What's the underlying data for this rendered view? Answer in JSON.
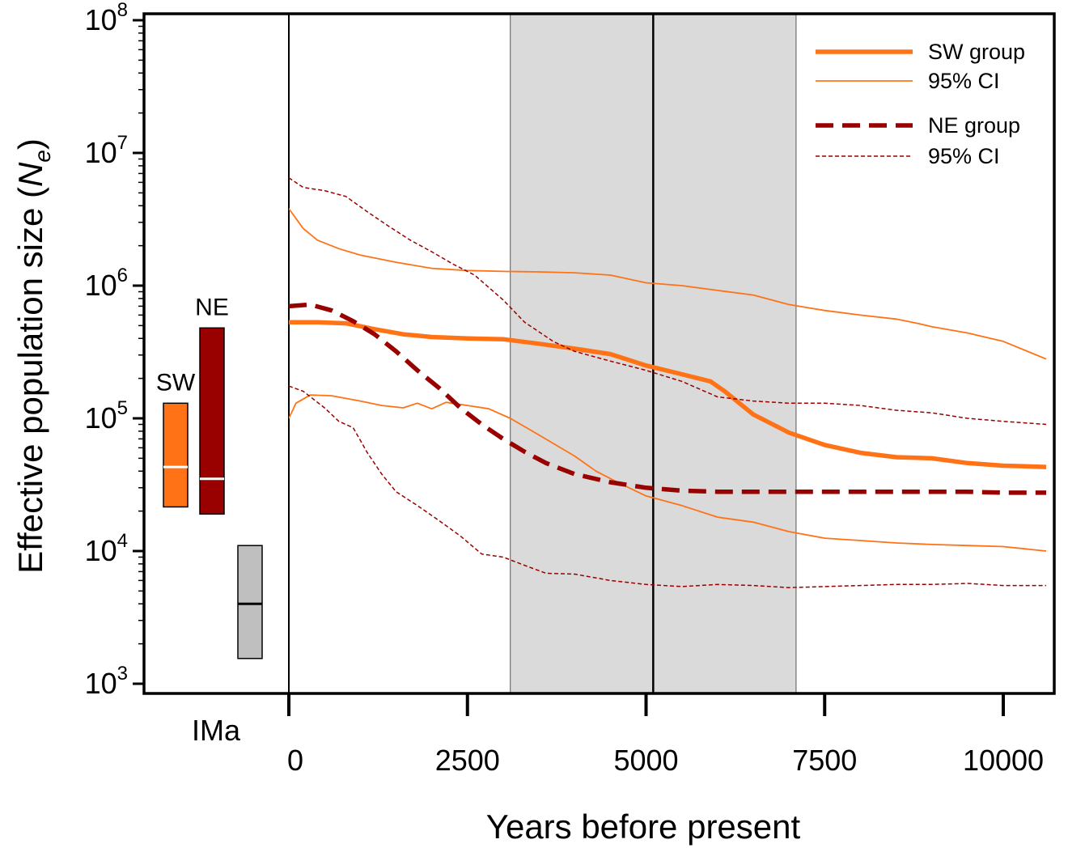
{
  "chart_data": {
    "type": "line",
    "xlabel": "Years before present",
    "ylabel_main": "Effective population size (",
    "ylabel_symbol": "N",
    "ylabel_sub": "e",
    "ylabel_close": ")",
    "yscale": "log",
    "xlim": [
      0,
      10600
    ],
    "ylim_exp": [
      2.9,
      8.0
    ],
    "x_ticks": [
      0,
      2500,
      5000,
      7500,
      10000
    ],
    "y_tick_exps": [
      3,
      4,
      5,
      6,
      7,
      8
    ],
    "y_tick_base": "10",
    "grid": false,
    "legend_position": "top-right",
    "shaded_interval": [
      3100,
      7100
    ],
    "vertical_line_x": 5100,
    "imx_label": "IMa",
    "series": [
      {
        "name": "SW group",
        "color": "#FF7216",
        "style": "solid-thick",
        "x": [
          0,
          400,
          800,
          1200,
          1600,
          2000,
          2500,
          3000,
          3500,
          4000,
          4500,
          5000,
          5500,
          5900,
          6100,
          6500,
          7000,
          7500,
          8000,
          8500,
          9000,
          9500,
          10000,
          10600
        ],
        "y": [
          530000,
          530000,
          520000,
          470000,
          430000,
          410000,
          400000,
          395000,
          365000,
          335000,
          305000,
          250000,
          215000,
          190000,
          160000,
          107000,
          78000,
          63000,
          55000,
          51000,
          50000,
          46000,
          44000,
          43000
        ]
      },
      {
        "name": "95% CI",
        "color": "#FF7216",
        "style": "solid-thin",
        "x": [
          0,
          200,
          400,
          700,
          1000,
          1500,
          2000,
          2500,
          3000,
          3500,
          4000,
          4500,
          5000,
          5500,
          6000,
          6500,
          7000,
          7500,
          8000,
          8500,
          8800,
          9000,
          9500,
          10000,
          10600
        ],
        "y": [
          3800000,
          2700000,
          2200000,
          1900000,
          1700000,
          1500000,
          1350000,
          1300000,
          1280000,
          1270000,
          1250000,
          1200000,
          1050000,
          1000000,
          920000,
          850000,
          720000,
          650000,
          600000,
          560000,
          520000,
          490000,
          440000,
          380000,
          280000
        ]
      },
      {
        "name": "",
        "color": "#FF7216",
        "style": "solid-thin",
        "x": [
          0,
          100,
          300,
          600,
          1000,
          1300,
          1600,
          1800,
          2000,
          2200,
          2500,
          2800,
          3100,
          3500,
          4000,
          4300,
          4600,
          5000,
          5500,
          6000,
          6500,
          7000,
          7500,
          8000,
          8500,
          9000,
          9500,
          10000,
          10600
        ],
        "y": [
          100000,
          130000,
          150000,
          148000,
          135000,
          125000,
          120000,
          130000,
          118000,
          132000,
          125000,
          118000,
          100000,
          75000,
          52000,
          40000,
          33000,
          26000,
          22000,
          18000,
          16500,
          14000,
          12500,
          12000,
          11500,
          11200,
          11000,
          10800,
          10000
        ]
      },
      {
        "name": "NE group",
        "color": "#990000",
        "style": "dashed-thick",
        "x": [
          0,
          300,
          600,
          900,
          1200,
          1500,
          1800,
          2100,
          2400,
          2700,
          3000,
          3300,
          3600,
          4000,
          4500,
          5000,
          5500,
          6000,
          6500,
          7000,
          7500,
          8000,
          8500,
          9000,
          9500,
          10000,
          10600
        ],
        "y": [
          700000,
          720000,
          650000,
          540000,
          430000,
          320000,
          230000,
          170000,
          120000,
          90000,
          70000,
          56000,
          46000,
          38000,
          33000,
          30000,
          28500,
          28000,
          28000,
          28000,
          28000,
          28000,
          28000,
          28000,
          28000,
          27500,
          27500
        ]
      },
      {
        "name": "95% CI",
        "color": "#990000",
        "style": "dashed-thin",
        "x": [
          0,
          200,
          500,
          800,
          1100,
          1400,
          1700,
          2000,
          2300,
          2600,
          3000,
          3300,
          3700,
          4000,
          4500,
          5000,
          5500,
          6000,
          6500,
          7000,
          7500,
          8000,
          8500,
          9000,
          9500,
          10000,
          10600
        ],
        "y": [
          6500000,
          5500000,
          5200000,
          4700000,
          3600000,
          2800000,
          2200000,
          1800000,
          1450000,
          1200000,
          780000,
          530000,
          380000,
          320000,
          270000,
          230000,
          190000,
          145000,
          135000,
          130000,
          130000,
          125000,
          115000,
          110000,
          100000,
          95000,
          90000
        ]
      },
      {
        "name": "",
        "color": "#990000",
        "style": "dashed-thin",
        "x": [
          0,
          200,
          500,
          700,
          900,
          1100,
          1300,
          1500,
          1800,
          2100,
          2400,
          2700,
          3000,
          3300,
          3600,
          4000,
          4500,
          5000,
          5500,
          6000,
          6500,
          7000,
          7500,
          8000,
          8500,
          9000,
          9500,
          10000,
          10600
        ],
        "y": [
          175000,
          160000,
          120000,
          95000,
          85000,
          55000,
          38000,
          28000,
          22000,
          17000,
          13000,
          9500,
          9000,
          7800,
          6800,
          6700,
          6000,
          5600,
          5400,
          5600,
          5500,
          5300,
          5400,
          5500,
          5600,
          5600,
          5700,
          5500,
          5500
        ]
      }
    ],
    "legend": [
      {
        "label": "SW group",
        "color": "#FF7216",
        "style": "solid-thick"
      },
      {
        "label": "95% CI",
        "color": "#FF7216",
        "style": "solid-thin"
      },
      {
        "label": "NE group",
        "color": "#990000",
        "style": "dashed-thick"
      },
      {
        "label": "95% CI",
        "color": "#990000",
        "style": "dashed-thin"
      }
    ],
    "ima_boxes": [
      {
        "label": "SW",
        "low": 21500,
        "high": 130000,
        "median": 43000,
        "color": "#FF7216",
        "median_color": "#ffffff"
      },
      {
        "label": "NE",
        "low": 19000,
        "high": 480000,
        "median": 35000,
        "color": "#990000",
        "median_color": "#ffffff"
      },
      {
        "label": "",
        "low": 1550,
        "high": 11000,
        "median": 4000,
        "color": "#BFBFBF",
        "median_color": "#000000"
      }
    ]
  }
}
